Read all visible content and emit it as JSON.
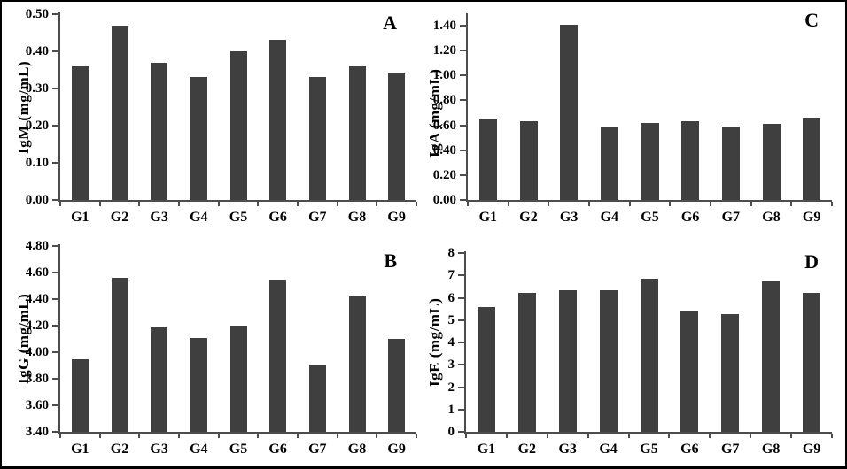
{
  "figure": {
    "background": "#ffffff",
    "border_color": "#000000",
    "bar_color": "#3f3f3f",
    "axis_color": "#4d4d4d",
    "text_color": "#000000"
  },
  "chart_data": [
    {
      "panel_label": "A",
      "type": "bar",
      "ylabel": "IgM (mg/mL)",
      "xlabel": "",
      "categories": [
        "G1",
        "G2",
        "G3",
        "G4",
        "G5",
        "G6",
        "G7",
        "G8",
        "G9"
      ],
      "values": [
        0.36,
        0.47,
        0.37,
        0.33,
        0.4,
        0.43,
        0.33,
        0.36,
        0.34
      ],
      "ylim": [
        0,
        0.5
      ],
      "ytick_step": 0.1,
      "ytick_decimals": 2,
      "grid": false,
      "legend": "none"
    },
    {
      "panel_label": "C",
      "type": "bar",
      "ylabel": "IgA (mg/mL)",
      "xlabel": "",
      "categories": [
        "G1",
        "G2",
        "G3",
        "G4",
        "G5",
        "G6",
        "G7",
        "G8",
        "G9"
      ],
      "values": [
        0.65,
        0.63,
        1.41,
        0.58,
        0.62,
        0.63,
        0.59,
        0.61,
        0.66
      ],
      "ylim": [
        0,
        1.4
      ],
      "ytick_step": 0.2,
      "ytick_decimals": 2,
      "grid": false,
      "legend": "none"
    },
    {
      "panel_label": "B",
      "type": "bar",
      "ylabel": "IgG (mg/mL)",
      "xlabel": "",
      "categories": [
        "G1",
        "G2",
        "G3",
        "G4",
        "G5",
        "G6",
        "G7",
        "G8",
        "G9"
      ],
      "values": [
        3.95,
        4.56,
        4.19,
        4.11,
        4.2,
        4.55,
        3.91,
        4.43,
        4.1
      ],
      "ylim": [
        3.4,
        4.8
      ],
      "ytick_step": 0.2,
      "ytick_decimals": 2,
      "grid": false,
      "legend": "none"
    },
    {
      "panel_label": "D",
      "type": "bar",
      "ylabel": "IgE (mg/mL)",
      "xlabel": "",
      "categories": [
        "G1",
        "G2",
        "G3",
        "G4",
        "G5",
        "G6",
        "G7",
        "G8",
        "G9"
      ],
      "values": [
        5.6,
        6.2,
        6.35,
        6.35,
        6.85,
        5.4,
        5.25,
        6.75,
        6.2
      ],
      "ylim": [
        0,
        8
      ],
      "ytick_step": 1,
      "ytick_decimals": 0,
      "grid": false,
      "legend": "none"
    }
  ]
}
